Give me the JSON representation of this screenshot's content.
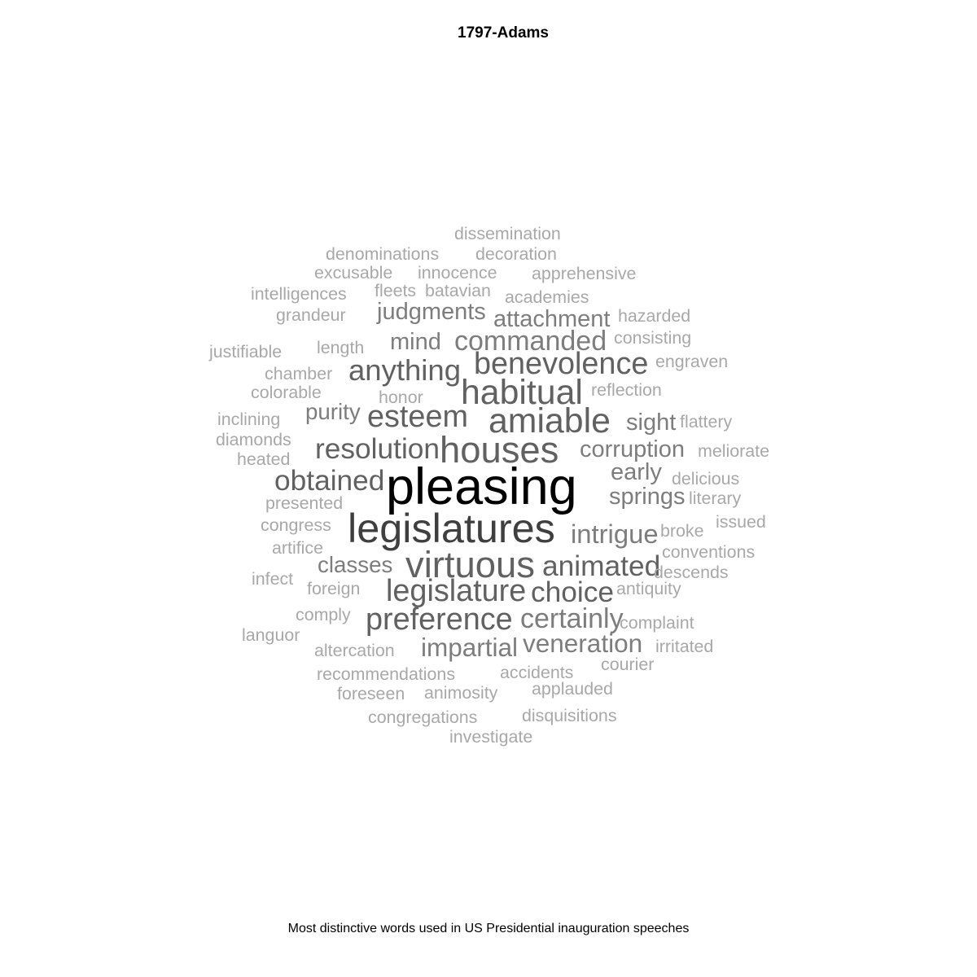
{
  "chart_data": {
    "type": "wordcloud",
    "title": "1797-Adams",
    "caption": "Most distinctive words used in US Presidential inauguration speeches",
    "colors": {
      "max": "#000000",
      "high": "#3f3f3f",
      "mid": "#616161",
      "low": "#7d7d7d",
      "min": "#a8a8a8"
    },
    "words": [
      {
        "text": "pleasing",
        "weight": 1.0
      },
      {
        "text": "legislatures",
        "weight": 0.8
      },
      {
        "text": "houses",
        "weight": 0.72
      },
      {
        "text": "virtuous",
        "weight": 0.72
      },
      {
        "text": "amiable",
        "weight": 0.68
      },
      {
        "text": "habitual",
        "weight": 0.68
      },
      {
        "text": "benevolence",
        "weight": 0.6
      },
      {
        "text": "legislature",
        "weight": 0.6
      },
      {
        "text": "preference",
        "weight": 0.6
      },
      {
        "text": "esteem",
        "weight": 0.6
      },
      {
        "text": "anything",
        "weight": 0.58
      },
      {
        "text": "resolution",
        "weight": 0.56
      },
      {
        "text": "obtained",
        "weight": 0.56
      },
      {
        "text": "choice",
        "weight": 0.56
      },
      {
        "text": "animated",
        "weight": 0.56
      },
      {
        "text": "certainly",
        "weight": 0.54
      },
      {
        "text": "commanded",
        "weight": 0.54
      },
      {
        "text": "intrigue",
        "weight": 0.52
      },
      {
        "text": "impartial",
        "weight": 0.5
      },
      {
        "text": "veneration",
        "weight": 0.5
      },
      {
        "text": "corruption",
        "weight": 0.46
      },
      {
        "text": "attachment",
        "weight": 0.46
      },
      {
        "text": "judgments",
        "weight": 0.46
      },
      {
        "text": "mind",
        "weight": 0.46
      },
      {
        "text": "springs",
        "weight": 0.46
      },
      {
        "text": "early",
        "weight": 0.46
      },
      {
        "text": "sight",
        "weight": 0.46
      },
      {
        "text": "classes",
        "weight": 0.44
      },
      {
        "text": "purity",
        "weight": 0.44
      },
      {
        "text": "dissemination",
        "weight": 0.34
      },
      {
        "text": "denominations",
        "weight": 0.34
      },
      {
        "text": "decoration",
        "weight": 0.34
      },
      {
        "text": "excusable",
        "weight": 0.34
      },
      {
        "text": "innocence",
        "weight": 0.34
      },
      {
        "text": "apprehensive",
        "weight": 0.34
      },
      {
        "text": "intelligences",
        "weight": 0.34
      },
      {
        "text": "fleets",
        "weight": 0.34
      },
      {
        "text": "batavian",
        "weight": 0.34
      },
      {
        "text": "academies",
        "weight": 0.34
      },
      {
        "text": "grandeur",
        "weight": 0.34
      },
      {
        "text": "hazarded",
        "weight": 0.34
      },
      {
        "text": "consisting",
        "weight": 0.34
      },
      {
        "text": "justifiable",
        "weight": 0.34
      },
      {
        "text": "length",
        "weight": 0.34
      },
      {
        "text": "engraven",
        "weight": 0.34
      },
      {
        "text": "chamber",
        "weight": 0.34
      },
      {
        "text": "reflection",
        "weight": 0.34
      },
      {
        "text": "colorable",
        "weight": 0.34
      },
      {
        "text": "honor",
        "weight": 0.34
      },
      {
        "text": "inclining",
        "weight": 0.34
      },
      {
        "text": "flattery",
        "weight": 0.34
      },
      {
        "text": "diamonds",
        "weight": 0.34
      },
      {
        "text": "meliorate",
        "weight": 0.34
      },
      {
        "text": "heated",
        "weight": 0.34
      },
      {
        "text": "delicious",
        "weight": 0.34
      },
      {
        "text": "presented",
        "weight": 0.34
      },
      {
        "text": "literary",
        "weight": 0.34
      },
      {
        "text": "congress",
        "weight": 0.34
      },
      {
        "text": "issued",
        "weight": 0.34
      },
      {
        "text": "artifice",
        "weight": 0.34
      },
      {
        "text": "broke",
        "weight": 0.34
      },
      {
        "text": "conventions",
        "weight": 0.34
      },
      {
        "text": "infect",
        "weight": 0.34
      },
      {
        "text": "descends",
        "weight": 0.34
      },
      {
        "text": "foreign",
        "weight": 0.34
      },
      {
        "text": "antiquity",
        "weight": 0.34
      },
      {
        "text": "comply",
        "weight": 0.34
      },
      {
        "text": "complaint",
        "weight": 0.34
      },
      {
        "text": "languor",
        "weight": 0.34
      },
      {
        "text": "altercation",
        "weight": 0.34
      },
      {
        "text": "irritated",
        "weight": 0.34
      },
      {
        "text": "recommendations",
        "weight": 0.34
      },
      {
        "text": "accidents",
        "weight": 0.34
      },
      {
        "text": "courier",
        "weight": 0.34
      },
      {
        "text": "foreseen",
        "weight": 0.34
      },
      {
        "text": "animosity",
        "weight": 0.34
      },
      {
        "text": "applauded",
        "weight": 0.34
      },
      {
        "text": "congregations",
        "weight": 0.34
      },
      {
        "text": "disquisitions",
        "weight": 0.34
      },
      {
        "text": "investigate",
        "weight": 0.34
      }
    ]
  }
}
